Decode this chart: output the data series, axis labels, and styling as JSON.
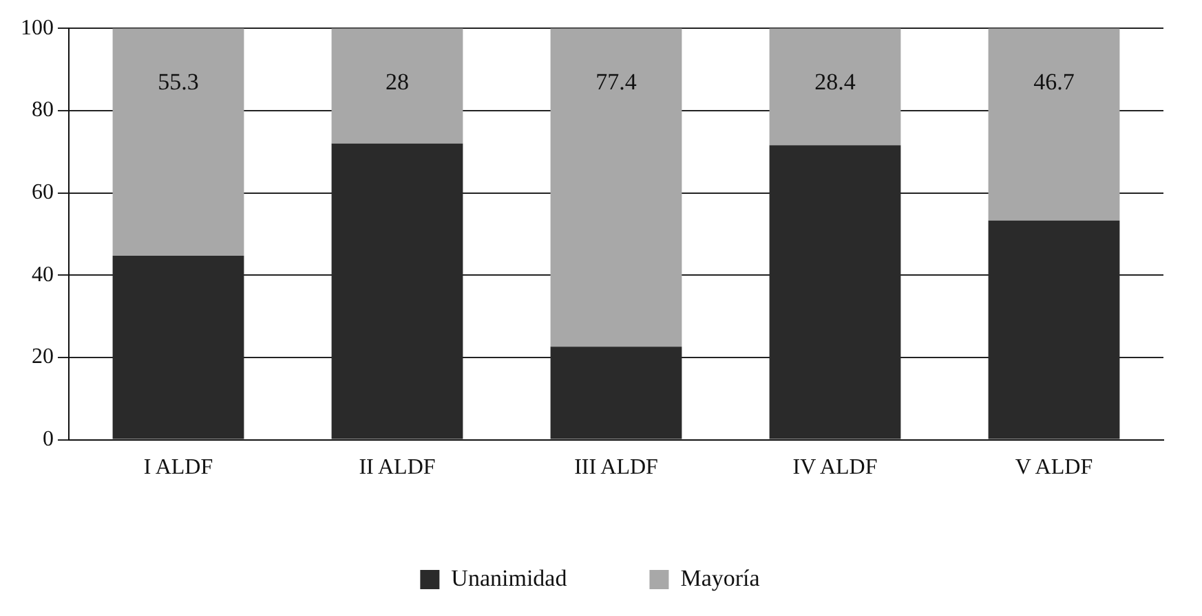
{
  "chart_data": {
    "type": "bar",
    "stacked": true,
    "categories": [
      "I ALDF",
      "II ALDF",
      "III ALDF",
      "IV ALDF",
      "V ALDF"
    ],
    "series": [
      {
        "name": "Unanimidad",
        "color": "#2a2a2a",
        "values": [
          44.7,
          72,
          22.6,
          71.6,
          53.3
        ]
      },
      {
        "name": "Mayoría",
        "color": "#a8a8a8",
        "values": [
          55.3,
          28,
          77.4,
          28.4,
          46.7
        ],
        "value_labels": [
          "55.3",
          "28",
          "77.4",
          "28.4",
          "46.7"
        ]
      }
    ],
    "ylim": [
      0,
      100
    ],
    "yticks": [
      0,
      20,
      40,
      60,
      80,
      100
    ],
    "grid": "y",
    "legend": "bottom"
  }
}
